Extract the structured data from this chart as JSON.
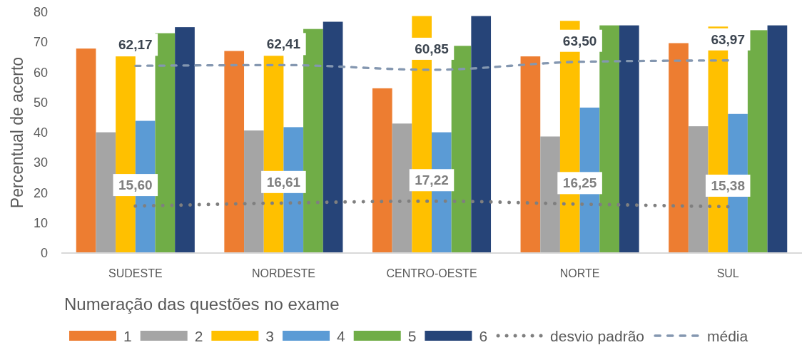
{
  "chart_data": {
    "type": "bar",
    "ylabel": "Percentual de acerto",
    "xlabel": "Numeração das questões no exame",
    "categories": [
      "SUDESTE",
      "NORDESTE",
      "CENTRO-OESTE",
      "NORTE",
      "SUL"
    ],
    "series": [
      {
        "name": "1",
        "color": "#ed7d31",
        "values": [
          67.9,
          67.1,
          54.7,
          65.3,
          69.7
        ]
      },
      {
        "name": "2",
        "color": "#a5a5a5",
        "values": [
          40.1,
          40.7,
          43.0,
          38.7,
          42.1
        ]
      },
      {
        "name": "3",
        "color": "#ffc000",
        "values": [
          65.3,
          65.5,
          78.7,
          77.1,
          75.2
        ]
      },
      {
        "name": "4",
        "color": "#5b9bd5",
        "values": [
          43.9,
          41.8,
          40.1,
          48.3,
          46.2
        ]
      },
      {
        "name": "5",
        "color": "#70ad47",
        "values": [
          73.0,
          74.4,
          68.8,
          75.6,
          74.0
        ]
      },
      {
        "name": "6",
        "color": "#264478",
        "values": [
          75.0,
          76.8,
          78.7,
          75.6,
          75.6
        ]
      },
      {
        "name": "desvio padrão",
        "type": "line",
        "color": "#7f7f7f",
        "line_style": "dotted",
        "values": [
          15.6,
          16.61,
          17.22,
          16.25,
          15.38
        ],
        "value_labels": [
          "15,60",
          "16,61",
          "17,22",
          "16,25",
          "15,38"
        ]
      },
      {
        "name": "média",
        "type": "line",
        "color": "#8497b0",
        "line_style": "dashed",
        "values": [
          62.17,
          62.41,
          60.85,
          63.5,
          63.97
        ],
        "value_labels": [
          "62,17",
          "62,41",
          "60,85",
          "63,50",
          "63,97"
        ]
      }
    ],
    "ylim": [
      0,
      80
    ],
    "yticks": [
      0,
      10,
      20,
      30,
      40,
      50,
      60,
      70,
      80
    ],
    "legend": "bottom"
  }
}
